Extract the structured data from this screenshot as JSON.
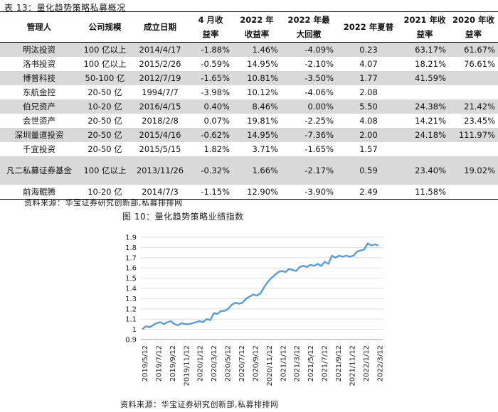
{
  "table_title": "表 13：量化趋势策略私募概况",
  "table": {
    "headers": [
      [
        "管理人"
      ],
      [
        "公司规模"
      ],
      [
        "成立日期"
      ],
      [
        "4 月收",
        "益率"
      ],
      [
        "2022 年",
        "收益率"
      ],
      [
        "2022 年最",
        "大回撤"
      ],
      [
        "2022 年夏普"
      ],
      [
        "2021 年收",
        "益率"
      ],
      [
        "2020 年收",
        "益率"
      ]
    ],
    "rows": [
      {
        "manager": "明汯投资",
        "size": "100 亿以上",
        "date": "2014/4/17",
        "apr": "-1.88%",
        "ret2022": "1.46%",
        "mdd": "-4.09%",
        "sharpe": "0.23",
        "ret2021": "63.17%",
        "ret2020": "61.67%"
      },
      {
        "manager": "洛书投资",
        "size": "100 亿以上",
        "date": "2015/2/26",
        "apr": "-0.59%",
        "ret2022": "14.95%",
        "mdd": "-2.10%",
        "sharpe": "4.07",
        "ret2021": "18.21%",
        "ret2020": "76.61%"
      },
      {
        "manager": "博普科技",
        "size": "50-100 亿",
        "date": "2012/7/19",
        "apr": "-1.65%",
        "ret2022": "10.81%",
        "mdd": "-3.50%",
        "sharpe": "1.77",
        "ret2021": "41.59%",
        "ret2020": ""
      },
      {
        "manager": "东航金控",
        "size": "20-50 亿",
        "date": "1994/7/7",
        "apr": "-3.98%",
        "ret2022": "10.12%",
        "mdd": "-4.06%",
        "sharpe": "2.08",
        "ret2021": "",
        "ret2020": ""
      },
      {
        "manager": "伯兄资产",
        "size": "10-20 亿",
        "date": "2016/4/15",
        "apr": "0.40%",
        "ret2022": "8.46%",
        "mdd": "0.00%",
        "sharpe": "5.50",
        "ret2021": "24.38%",
        "ret2020": "21.42%"
      },
      {
        "manager": "会世资产",
        "size": "20-50 亿",
        "date": "2018/2/8",
        "apr": "0.07%",
        "ret2022": "19.81%",
        "mdd": "-2.25%",
        "sharpe": "4.08",
        "ret2021": "14.21%",
        "ret2020": "23.45%"
      },
      {
        "manager": "深圳量道投资",
        "size": "20-50 亿",
        "date": "2015/4/16",
        "apr": "-0.62%",
        "ret2022": "14.95%",
        "mdd": "-7.36%",
        "sharpe": "2.00",
        "ret2021": "24.18%",
        "ret2020": "111.97%"
      },
      {
        "manager": "千宜投资",
        "size": "20-50 亿",
        "date": "2015/5/15",
        "apr": "1.82%",
        "ret2022": "3.71%",
        "mdd": "-1.65%",
        "sharpe": "1.57",
        "ret2021": "",
        "ret2020": ""
      },
      {
        "manager": "凡二私募证券基金",
        "size": "100 亿以上",
        "date": "2013/11/26",
        "apr": "-0.32%",
        "ret2022": "1.66%",
        "mdd": "-2.17%",
        "sharpe": "0.59",
        "ret2021": "23.40%",
        "ret2020": "19.02%"
      },
      {
        "manager": "前海鲲腾",
        "size": "10-20 亿",
        "date": "2014/7/3",
        "apr": "-1.15%",
        "ret2022": "12.90%",
        "mdd": "-3.90%",
        "sharpe": "2.49",
        "ret2021": "11.58%",
        "ret2020": ""
      }
    ]
  },
  "source1": "资料来源：华宝证券研究创新部,私募排排网",
  "chart_title": "图 10：量化趋势策略业绩指数",
  "source2": "资料来源：华宝证券研究创新部,私募排排网",
  "colors": {
    "line": "#5b9bd5",
    "grid": "#d9d9d9",
    "shade": "#d9d9d9"
  },
  "chart_data": {
    "type": "line",
    "title": "",
    "xlabel": "",
    "ylabel": "",
    "ylim": [
      0.9,
      1.9
    ],
    "yticks": [
      0.9,
      1,
      1.1,
      1.2,
      1.3,
      1.4,
      1.5,
      1.6,
      1.7,
      1.8,
      1.9
    ],
    "xtick_labels": [
      "2019/5/12",
      "2019/7/12",
      "2019/9/12",
      "2019/11/12",
      "2020/1/12",
      "2020/3/12",
      "2020/5/12",
      "2020/7/12",
      "2020/9/12",
      "2020/11/12",
      "2021/1/12",
      "2021/3/12",
      "2021/5/12",
      "2021/7/12",
      "2021/9/12",
      "2021/11/12",
      "2022/1/12",
      "2022/3/12"
    ],
    "grid": true,
    "series": [
      {
        "values": [
          1.0,
          1.03,
          1.02,
          1.04,
          1.06,
          1.07,
          1.05,
          1.07,
          1.08,
          1.05,
          1.04,
          1.06,
          1.05,
          1.05,
          1.06,
          1.07,
          1.08,
          1.07,
          1.1,
          1.09,
          1.16,
          1.15,
          1.18,
          1.18,
          1.2,
          1.24,
          1.26,
          1.25,
          1.26,
          1.3,
          1.32,
          1.34,
          1.33,
          1.35,
          1.41,
          1.46,
          1.5,
          1.53,
          1.56,
          1.57,
          1.56,
          1.59,
          1.58,
          1.57,
          1.61,
          1.62,
          1.61,
          1.63,
          1.62,
          1.64,
          1.62,
          1.66,
          1.64,
          1.72,
          1.7,
          1.72,
          1.71,
          1.72,
          1.71,
          1.72,
          1.76,
          1.77,
          1.78,
          1.84,
          1.82,
          1.83,
          1.82
        ]
      }
    ]
  }
}
